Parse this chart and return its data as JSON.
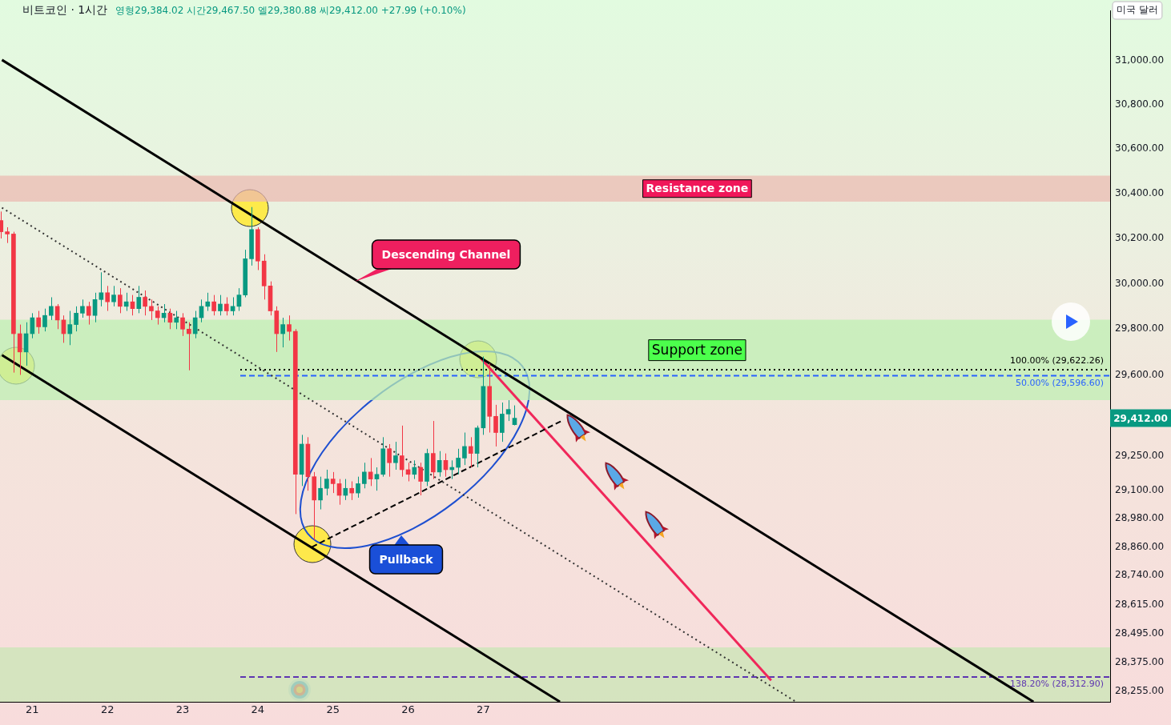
{
  "chart_data": {
    "type": "candlestick",
    "title": "비트코인 · 1시간",
    "subtitle": "영형29,384.02 시간29,467.50 엘29,380.88 씨29,412.00 +27.99 (+0.10%)",
    "x": [
      20.5833,
      20.6667,
      20.75,
      20.8333,
      20.9167,
      21,
      21.0833,
      21.1667,
      21.25,
      21.3333,
      21.4167,
      21.5,
      21.5833,
      21.6667,
      21.75,
      21.8333,
      21.9167,
      22,
      22.0833,
      22.1667,
      22.25,
      22.3333,
      22.4167,
      22.5,
      22.5833,
      22.6667,
      22.75,
      22.8333,
      22.9167,
      23,
      23.0833,
      23.1667,
      23.25,
      23.3333,
      23.4167,
      23.5,
      23.5833,
      23.6667,
      23.75,
      23.8333,
      23.9167,
      24,
      24.0833,
      24.1667,
      24.25,
      24.3333,
      24.4167,
      24.5,
      24.5833,
      24.6667,
      24.75,
      24.8333,
      24.9167,
      25,
      25.0833,
      25.1667,
      25.25,
      25.3333,
      25.4167,
      25.5,
      25.5833,
      25.6667,
      25.75,
      25.8333,
      25.9167,
      26,
      26.0833,
      26.1667,
      26.25,
      26.3333,
      26.4167,
      26.5,
      26.5833,
      26.6667,
      26.75,
      26.8333,
      26.9167,
      27,
      27.0833,
      27.1667,
      27.25,
      27.3333,
      27.4167
    ],
    "ohlc": [
      [
        30280,
        30320,
        30200,
        30230
      ],
      [
        30230,
        30250,
        30180,
        30220
      ],
      [
        30220,
        30230,
        29610,
        29780
      ],
      [
        29780,
        29820,
        29600,
        29700
      ],
      [
        29700,
        29830,
        29640,
        29780
      ],
      [
        29780,
        29870,
        29760,
        29850
      ],
      [
        29850,
        29880,
        29780,
        29810
      ],
      [
        29810,
        29890,
        29790,
        29860
      ],
      [
        29860,
        29940,
        29840,
        29900
      ],
      [
        29900,
        29910,
        29800,
        29840
      ],
      [
        29840,
        29860,
        29740,
        29780
      ],
      [
        29780,
        29880,
        29730,
        29820
      ],
      [
        29820,
        29900,
        29790,
        29870
      ],
      [
        29870,
        29930,
        29850,
        29900
      ],
      [
        29900,
        29920,
        29820,
        29860
      ],
      [
        29860,
        29960,
        29830,
        29930
      ],
      [
        29930,
        30050,
        29900,
        29960
      ],
      [
        29960,
        29990,
        29880,
        29920
      ],
      [
        29920,
        29990,
        29900,
        29950
      ],
      [
        29950,
        29980,
        29870,
        29900
      ],
      [
        29900,
        29960,
        29880,
        29920
      ],
      [
        29920,
        29950,
        29860,
        29890
      ],
      [
        29890,
        29990,
        29870,
        29940
      ],
      [
        29940,
        29970,
        29860,
        29900
      ],
      [
        29900,
        29930,
        29840,
        29880
      ],
      [
        29880,
        29900,
        29820,
        29850
      ],
      [
        29850,
        29910,
        29830,
        29870
      ],
      [
        29870,
        29890,
        29800,
        29830
      ],
      [
        29830,
        29880,
        29800,
        29850
      ],
      [
        29850,
        29870,
        29770,
        29800
      ],
      [
        29800,
        29830,
        29620,
        29780
      ],
      [
        29780,
        29880,
        29760,
        29850
      ],
      [
        29850,
        29930,
        29830,
        29900
      ],
      [
        29900,
        29960,
        29880,
        29920
      ],
      [
        29920,
        29950,
        29860,
        29880
      ],
      [
        29880,
        29950,
        29860,
        29910
      ],
      [
        29910,
        29940,
        29860,
        29880
      ],
      [
        29880,
        29940,
        29860,
        29900
      ],
      [
        29900,
        29980,
        29880,
        29950
      ],
      [
        29950,
        30150,
        29940,
        30110
      ],
      [
        30110,
        30340,
        30080,
        30240
      ],
      [
        30240,
        30250,
        30060,
        30100
      ],
      [
        30100,
        30130,
        29930,
        29990
      ],
      [
        29990,
        30010,
        29860,
        29880
      ],
      [
        29880,
        29900,
        29700,
        29780
      ],
      [
        29780,
        29850,
        29720,
        29820
      ],
      [
        29820,
        29860,
        29750,
        29790
      ],
      [
        29790,
        29800,
        29000,
        29170
      ],
      [
        29170,
        29340,
        29120,
        29300
      ],
      [
        29300,
        29330,
        29100,
        29160
      ],
      [
        29160,
        29180,
        28890,
        29060
      ],
      [
        29060,
        29160,
        29020,
        29110
      ],
      [
        29110,
        29190,
        29080,
        29150
      ],
      [
        29150,
        29180,
        29090,
        29130
      ],
      [
        29130,
        29150,
        29040,
        29080
      ],
      [
        29080,
        29150,
        29060,
        29110
      ],
      [
        29110,
        29140,
        29060,
        29090
      ],
      [
        29090,
        29160,
        29070,
        29130
      ],
      [
        29130,
        29220,
        29110,
        29180
      ],
      [
        29180,
        29240,
        29120,
        29150
      ],
      [
        29150,
        29200,
        29100,
        29170
      ],
      [
        29170,
        29330,
        29160,
        29280
      ],
      [
        29280,
        29300,
        29160,
        29220
      ],
      [
        29220,
        29310,
        29190,
        29250
      ],
      [
        29250,
        29380,
        29160,
        29190
      ],
      [
        29190,
        29220,
        29140,
        29170
      ],
      [
        29170,
        29230,
        29150,
        29200
      ],
      [
        29200,
        29220,
        29080,
        29140
      ],
      [
        29140,
        29280,
        29120,
        29260
      ],
      [
        29260,
        29400,
        29150,
        29180
      ],
      [
        29180,
        29270,
        29160,
        29230
      ],
      [
        29230,
        29260,
        29160,
        29190
      ],
      [
        29190,
        29230,
        29150,
        29200
      ],
      [
        29200,
        29280,
        29170,
        29240
      ],
      [
        29240,
        29350,
        29210,
        29290
      ],
      [
        29290,
        29330,
        29200,
        29260
      ],
      [
        29260,
        29380,
        29200,
        29370
      ],
      [
        29370,
        29680,
        29340,
        29550
      ],
      [
        29550,
        29650,
        29350,
        29420
      ],
      [
        29420,
        29470,
        29290,
        29350
      ],
      [
        29350,
        29480,
        29310,
        29430
      ],
      [
        29430,
        29490,
        29400,
        29450
      ],
      [
        29384.02,
        29467.5,
        29380.88,
        29412
      ]
    ],
    "series": [
      {
        "type": "line",
        "color": "#000000",
        "line_style": "solid",
        "marker": "none",
        "x": [
          20.596,
          34.32
        ],
        "values": [
          31004,
          28210
        ]
      },
      {
        "type": "line",
        "color": "#000000",
        "line_style": "solid",
        "marker": "none",
        "x": [
          20.596,
          28.02
        ],
        "values": [
          29686,
          28210
        ]
      },
      {
        "type": "line",
        "color": "#333333",
        "line_style": "dotted",
        "marker": "none",
        "x": [
          20.596,
          31.16
        ],
        "values": [
          30337,
          28210
        ]
      },
      {
        "type": "line",
        "color": "#000000",
        "line_style": "dashed",
        "marker": "none",
        "x": [
          24.72,
          28.04
        ],
        "values": [
          28860,
          29400
        ]
      },
      {
        "type": "line",
        "color": "#f0275a",
        "line_style": "solid",
        "marker": "none",
        "x": [
          26.96,
          30.83
        ],
        "values": [
          29675,
          28299
        ]
      }
    ],
    "bands": [
      {
        "axis": "y",
        "from": 30364,
        "to": 30481,
        "label": "Resistance zone",
        "color": "#ebb8b0"
      },
      {
        "axis": "y",
        "from": 29490,
        "to": 29841,
        "label": "Support zone",
        "color": "#bdf0b2"
      },
      {
        "axis": "y",
        "from": 28210,
        "to": 28437,
        "color": "#c8e6b4"
      }
    ],
    "ref_lines": [
      {
        "axis": "y",
        "value": 29622.26,
        "label": "100.00% (29,622.26)",
        "color": "#000000",
        "line_style": "dotted"
      },
      {
        "axis": "y",
        "value": 29596.6,
        "label": "50.00% (29,596.60)",
        "color": "#2962ff",
        "line_style": "dashed"
      },
      {
        "axis": "y",
        "value": 28312.9,
        "label": "138.20% (28,312.90)",
        "color": "#5e35b1",
        "line_style": "dashed"
      }
    ],
    "annotations": [
      "Descending Channel",
      "Pullback",
      "29,412.00",
      "미국 달러"
    ],
    "xlim": [
      20.57,
      35.34
    ],
    "xticks": [
      21,
      22,
      23,
      24,
      25,
      26,
      27
    ],
    "ylim": [
      28210,
      31230
    ],
    "log": true,
    "yticks": [
      {
        "value": 31000,
        "label": "31,000.00"
      },
      {
        "value": 30800,
        "label": "30,800.00"
      },
      {
        "value": 30600,
        "label": "30,600.00"
      },
      {
        "value": 30400,
        "label": "30,400.00"
      },
      {
        "value": 30200,
        "label": "30,200.00"
      },
      {
        "value": 30000,
        "label": "30,000.00"
      },
      {
        "value": 29800,
        "label": "29,800.00"
      },
      {
        "value": 29600,
        "label": "29,600.00"
      },
      {
        "value": 29250,
        "label": "29,250.00"
      },
      {
        "value": 29100,
        "label": "29,100.00"
      },
      {
        "value": 28980,
        "label": "28,980.00"
      },
      {
        "value": 28860,
        "label": "28,860.00"
      },
      {
        "value": 28740,
        "label": "28,740.00"
      },
      {
        "value": 28615,
        "label": "28,615.00"
      },
      {
        "value": 28495,
        "label": "28,495.00"
      },
      {
        "value": 28375,
        "label": "28,375.00"
      },
      {
        "value": 28255,
        "label": "28,255.00"
      }
    ],
    "grid": false,
    "legend": false
  }
}
